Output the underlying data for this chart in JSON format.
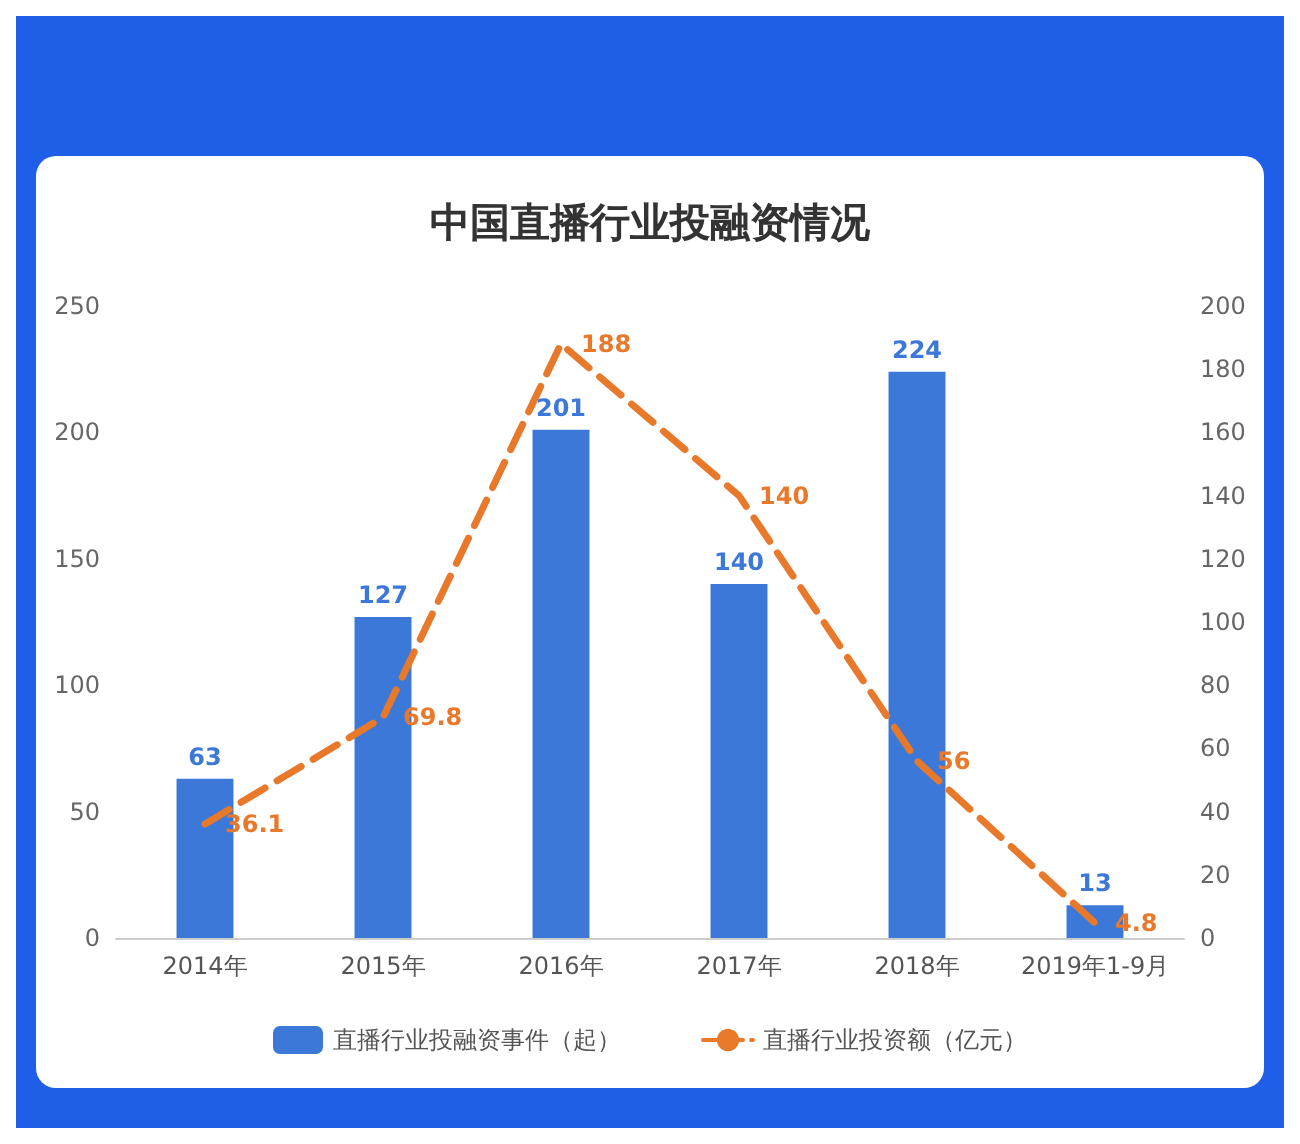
{
  "chart_data": {
    "type": "bar",
    "title": "中国直播行业投融资情况",
    "categories": [
      "2014年",
      "2015年",
      "2016年",
      "2017年",
      "2018年",
      "2019年1-9月"
    ],
    "series": [
      {
        "name": "直播行业投融资事件（起）",
        "color": "#3c78d8",
        "values": [
          63,
          127,
          201,
          140,
          224,
          13
        ]
      },
      {
        "name": "直播行业投资额（亿元）",
        "type": "line",
        "axis": "y2",
        "color": "#e8792b",
        "line_style": "dashed",
        "values": [
          36.1,
          69.8,
          188,
          140,
          56,
          4.8
        ]
      }
    ],
    "ylim": [
      0,
      250
    ],
    "yticks": [
      0,
      50,
      100,
      150,
      200,
      250
    ],
    "y2lim": [
      0,
      200
    ],
    "y2ticks": [
      0,
      20,
      40,
      60,
      80,
      100,
      120,
      140,
      160,
      180,
      200
    ],
    "data_labels": true,
    "grid": false,
    "legend": "bottom",
    "marker": "none"
  }
}
